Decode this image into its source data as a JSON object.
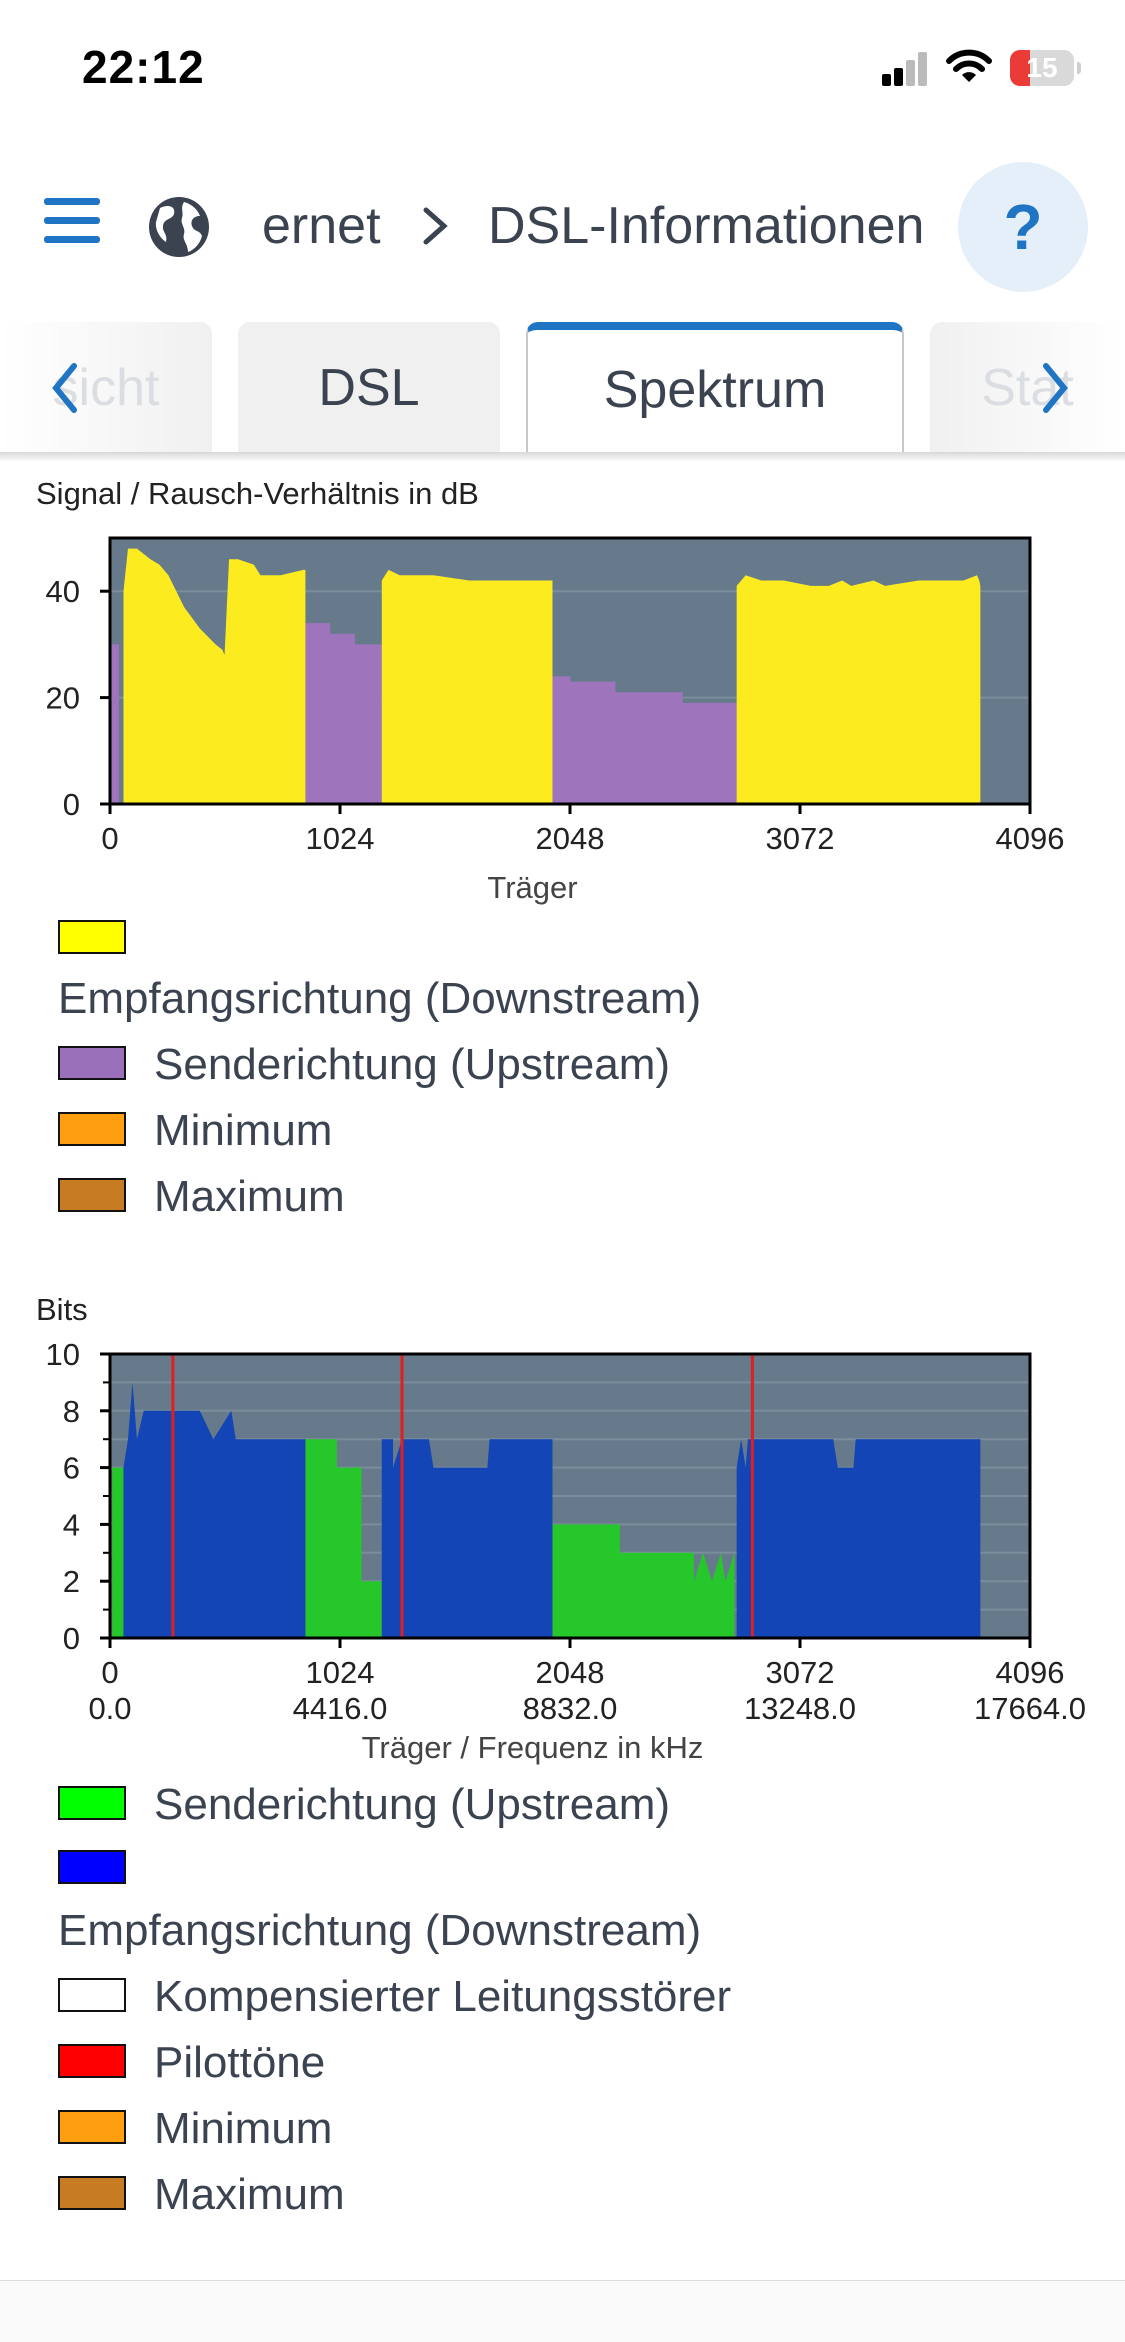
{
  "status_bar": {
    "time": "22:12",
    "battery": "15"
  },
  "header": {
    "breadcrumb_root": "ernet",
    "breadcrumb_sep": ">",
    "breadcrumb_current": "DSL-Informationen",
    "help_label": "?"
  },
  "tabs": {
    "left_partial": "sicht",
    "dsl": "DSL",
    "spektrum": "Spektrum",
    "right_partial": "Stat",
    "prev_icon": "chevron-left-icon",
    "next_icon": "chevron-right-icon"
  },
  "snr_chart": {
    "title": "Signal / Rausch-Verhältnis in dB",
    "xlabel": "Träger",
    "legend": [
      {
        "label": "Empfangsrichtung (Downstream)",
        "color": "#ffff00"
      },
      {
        "label": "Senderichtung (Upstream)",
        "color": "#9a70bb"
      },
      {
        "label": "Minimum",
        "color": "#ff9e0e"
      },
      {
        "label": "Maximum",
        "color": "#c77b23"
      }
    ]
  },
  "bits_chart": {
    "title": "Bits",
    "xlabel": "Träger / Frequenz in kHz",
    "legend": [
      {
        "label": "Senderichtung (Upstream)",
        "color": "#00ff00"
      },
      {
        "label": "Empfangsrichtung (Downstream)",
        "color": "#0000ff"
      },
      {
        "label": "Kompensierter Leitungsstörer",
        "color": "#ffffff"
      },
      {
        "label": "Pilottöne",
        "color": "#ff0000"
      },
      {
        "label": "Minimum",
        "color": "#ff9e0e"
      },
      {
        "label": "Maximum",
        "color": "#c77b23"
      }
    ]
  },
  "chart_data": [
    {
      "type": "area",
      "title": "Signal / Rausch-Verhältnis in dB",
      "xlabel": "Träger",
      "ylabel": "",
      "xlim": [
        0,
        4096
      ],
      "ylim": [
        0,
        50
      ],
      "x_ticks": [
        "0",
        "1024",
        "2048",
        "3072",
        "4096"
      ],
      "y_ticks": [
        "0",
        "20",
        "40"
      ],
      "background": "#667a8b",
      "series": [
        {
          "name": "Senderichtung (Upstream)",
          "color": "#9e75bd",
          "x": [
            0,
            5,
            5,
            40,
            40,
            60,
            60,
            870,
            870,
            980,
            980,
            1090,
            1090,
            1210,
            1210,
            1970,
            1970,
            2050,
            2050,
            2250,
            2250,
            2550,
            2550,
            2790,
            2790
          ],
          "y": [
            0,
            0,
            30,
            30,
            0,
            0,
            0,
            0,
            34,
            34,
            32,
            32,
            30,
            30,
            0,
            0,
            24,
            24,
            23,
            23,
            21,
            21,
            19,
            19,
            0
          ]
        },
        {
          "name": "Empfangsrichtung (Downstream)",
          "color": "#fbeb1f",
          "x": [
            60,
            60,
            80,
            120,
            180,
            220,
            260,
            330,
            400,
            470,
            500,
            510,
            530,
            570,
            640,
            670,
            700,
            760,
            860,
            870,
            870,
            1210,
            1210,
            1240,
            1290,
            1440,
            1600,
            1640,
            1970,
            1970,
            2790,
            2790,
            2830,
            2900,
            3000,
            3120,
            3200,
            3260,
            3300,
            3400,
            3450,
            3600,
            3800,
            3860,
            3870,
            3875,
            3875
          ],
          "y": [
            0,
            40,
            48,
            48,
            46,
            45,
            43,
            37,
            33,
            30,
            29,
            28,
            46,
            46,
            45,
            43,
            43,
            43,
            44,
            44,
            0,
            0,
            42,
            44,
            43,
            43,
            42,
            42,
            42,
            0,
            0,
            41,
            43,
            42,
            42,
            41,
            41,
            42,
            41,
            42,
            41,
            42,
            42,
            43,
            42,
            41,
            0
          ]
        }
      ]
    },
    {
      "type": "area",
      "title": "Bits",
      "xlabel": "Träger / Frequenz in kHz",
      "ylabel": "",
      "xlim": [
        0,
        4096
      ],
      "ylim": [
        0,
        10
      ],
      "x_ticks": [
        "0",
        "1024",
        "2048",
        "3072",
        "4096"
      ],
      "x_ticks_secondary": [
        "0.0",
        "4416.0",
        "8832.0",
        "13248.0",
        "17664.0"
      ],
      "y_ticks": [
        "0",
        "2",
        "4",
        "6",
        "8",
        "10"
      ],
      "background": "#667a8b",
      "pilot_tones": [
        280,
        1300,
        2860
      ],
      "series": [
        {
          "name": "Senderichtung (Upstream)",
          "color": "#26c72a",
          "x": [
            10,
            10,
            60,
            60,
            870,
            870,
            1010,
            1010,
            1120,
            1120,
            1210,
            1210,
            1970,
            1970,
            2270,
            2270,
            2600,
            2600,
            2640,
            2680,
            2720,
            2740,
            2780,
            2780
          ],
          "y": [
            0,
            6,
            6,
            0,
            0,
            7,
            7,
            6,
            6,
            2,
            2,
            0,
            0,
            4,
            4,
            3,
            3,
            2,
            3,
            2,
            3,
            2,
            3,
            0
          ]
        },
        {
          "name": "Empfangsrichtung (Downstream)",
          "color": "#1345b6",
          "x": [
            60,
            60,
            80,
            100,
            120,
            150,
            200,
            280,
            400,
            460,
            540,
            560,
            870,
            870,
            1210,
            1210,
            1260,
            1260,
            1300,
            1420,
            1440,
            1600,
            1680,
            1690,
            1970,
            1970,
            2790,
            2790,
            2810,
            2830,
            2840,
            2870,
            3000,
            3220,
            3240,
            3310,
            3320,
            3500,
            3860,
            3875,
            3875
          ],
          "y": [
            0,
            6,
            7,
            9,
            7,
            8,
            8,
            8,
            8,
            7,
            8,
            7,
            7,
            0,
            0,
            7,
            7,
            6,
            7,
            7,
            6,
            6,
            6,
            7,
            7,
            0,
            0,
            6,
            7,
            6,
            7,
            7,
            7,
            7,
            6,
            6,
            7,
            7,
            7,
            7,
            0
          ]
        }
      ]
    }
  ]
}
